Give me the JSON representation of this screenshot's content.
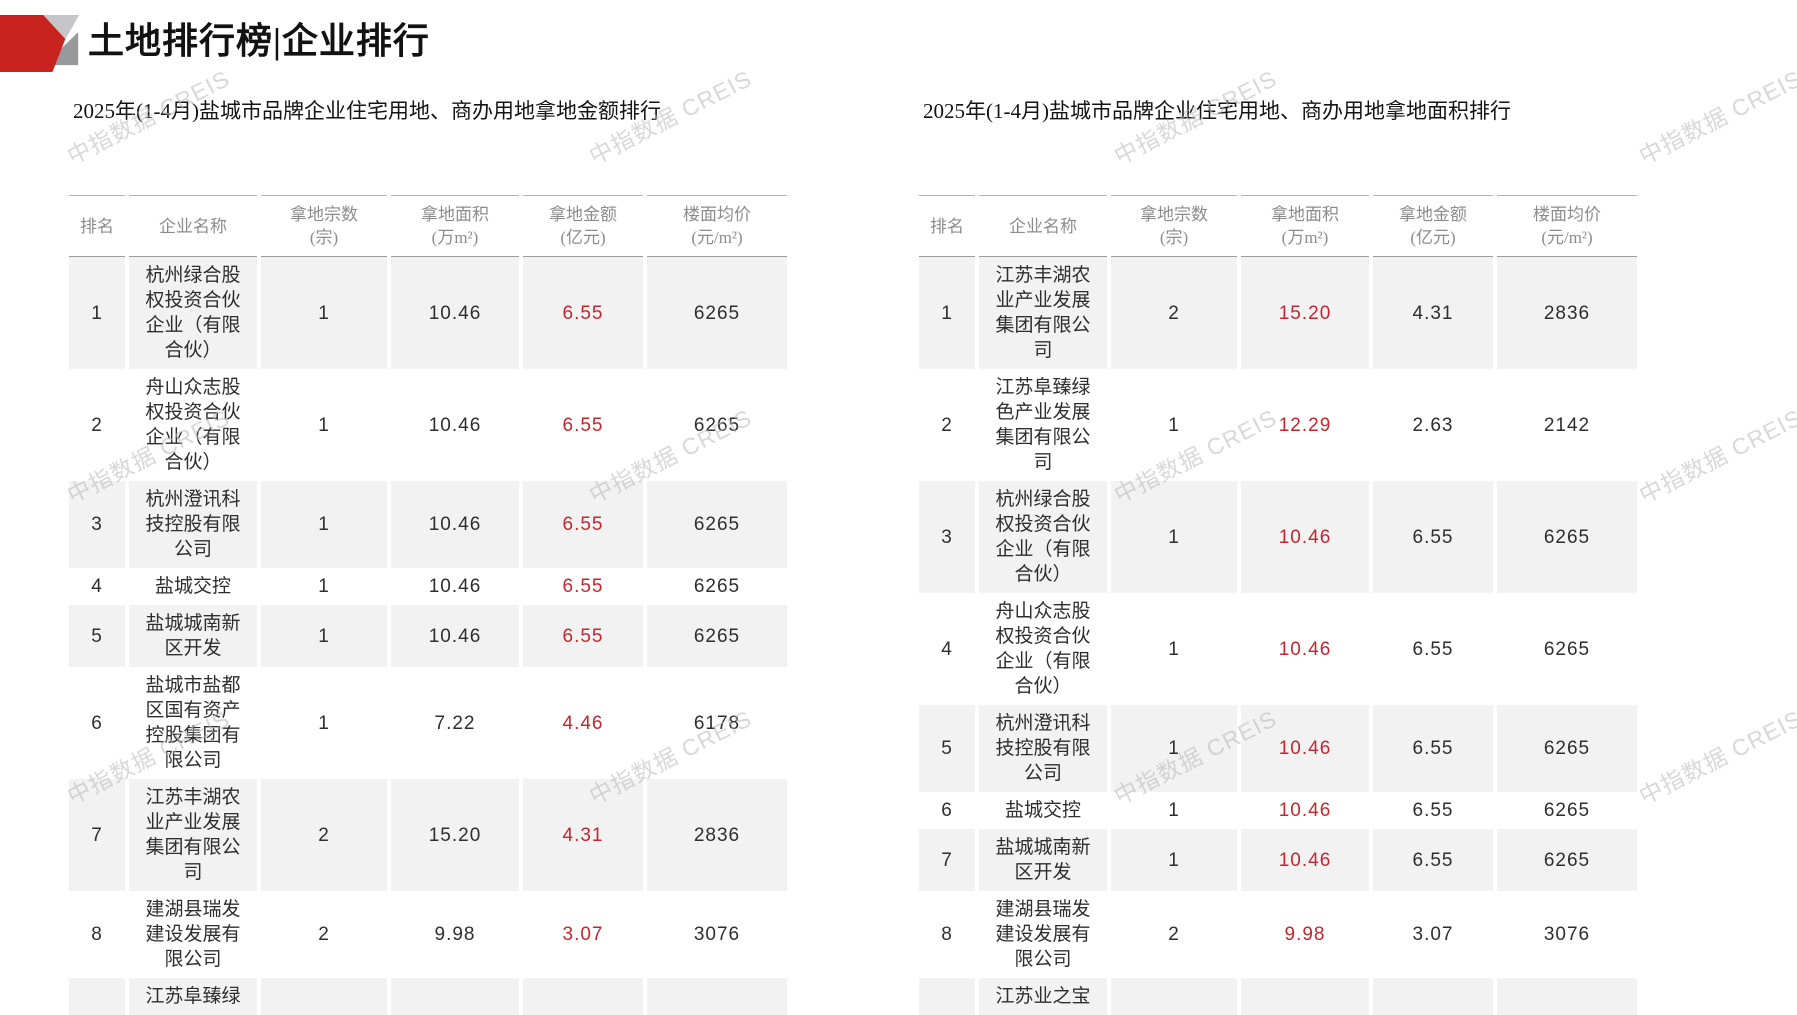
{
  "page": {
    "title": "土地排行榜|企业排行"
  },
  "watermark": {
    "text": "中指数据 CREIS",
    "color": "#b9b9b9"
  },
  "colors": {
    "highlight_red": "#c2262e",
    "logo_red": "#c8231f",
    "shaded_row": "#f2f2f3",
    "header_text": "#8c8c8c"
  },
  "tables": [
    {
      "subtitle": "2025年(1-4月)盐城市品牌企业住宅用地、商办用地拿地金额排行",
      "highlight_key": "amount",
      "columns": [
        {
          "key": "rank",
          "label": "排名"
        },
        {
          "key": "name",
          "label": "企业名称"
        },
        {
          "key": "parcels",
          "label": "拿地宗数\n(宗)"
        },
        {
          "key": "area",
          "label": "拿地面积\n(万m²)"
        },
        {
          "key": "amount",
          "label": "拿地金额\n(亿元)"
        },
        {
          "key": "price",
          "label": "楼面均价\n(元/m²)"
        }
      ],
      "rows": [
        {
          "rank": "1",
          "name": "杭州绿合股\n权投资合伙\n企业（有限\n合伙）",
          "parcels": "1",
          "area": "10.46",
          "amount": "6.55",
          "price": "6265"
        },
        {
          "rank": "2",
          "name": "舟山众志股\n权投资合伙\n企业（有限\n合伙）",
          "parcels": "1",
          "area": "10.46",
          "amount": "6.55",
          "price": "6265"
        },
        {
          "rank": "3",
          "name": "杭州澄讯科\n技控股有限\n公司",
          "parcels": "1",
          "area": "10.46",
          "amount": "6.55",
          "price": "6265"
        },
        {
          "rank": "4",
          "name": "盐城交控",
          "parcels": "1",
          "area": "10.46",
          "amount": "6.55",
          "price": "6265"
        },
        {
          "rank": "5",
          "name": "盐城城南新\n区开发",
          "parcels": "1",
          "area": "10.46",
          "amount": "6.55",
          "price": "6265"
        },
        {
          "rank": "6",
          "name": "盐城市盐都\n区国有资产\n控股集团有\n限公司",
          "parcels": "1",
          "area": "7.22",
          "amount": "4.46",
          "price": "6178"
        },
        {
          "rank": "7",
          "name": "江苏丰湖农\n业产业发展\n集团有限公\n司",
          "parcels": "2",
          "area": "15.20",
          "amount": "4.31",
          "price": "2836"
        },
        {
          "rank": "8",
          "name": "建湖县瑞发\n建设发展有\n限公司",
          "parcels": "2",
          "area": "9.98",
          "amount": "3.07",
          "price": "3076"
        },
        {
          "rank": "",
          "name": "江苏阜臻绿",
          "parcels": "",
          "area": "",
          "amount": "",
          "price": ""
        }
      ]
    },
    {
      "subtitle": "2025年(1-4月)盐城市品牌企业住宅用地、商办用地拿地面积排行",
      "highlight_key": "area",
      "columns": [
        {
          "key": "rank",
          "label": "排名"
        },
        {
          "key": "name",
          "label": "企业名称"
        },
        {
          "key": "parcels",
          "label": "拿地宗数\n(宗)"
        },
        {
          "key": "area",
          "label": "拿地面积\n(万m²)"
        },
        {
          "key": "amount",
          "label": "拿地金额\n(亿元)"
        },
        {
          "key": "price",
          "label": "楼面均价\n(元/m²)"
        }
      ],
      "rows": [
        {
          "rank": "1",
          "name": "江苏丰湖农\n业产业发展\n集团有限公\n司",
          "parcels": "2",
          "area": "15.20",
          "amount": "4.31",
          "price": "2836"
        },
        {
          "rank": "2",
          "name": "江苏阜臻绿\n色产业发展\n集团有限公\n司",
          "parcels": "1",
          "area": "12.29",
          "amount": "2.63",
          "price": "2142"
        },
        {
          "rank": "3",
          "name": "杭州绿合股\n权投资合伙\n企业（有限\n合伙）",
          "parcels": "1",
          "area": "10.46",
          "amount": "6.55",
          "price": "6265"
        },
        {
          "rank": "4",
          "name": "舟山众志股\n权投资合伙\n企业（有限\n合伙）",
          "parcels": "1",
          "area": "10.46",
          "amount": "6.55",
          "price": "6265"
        },
        {
          "rank": "5",
          "name": "杭州澄讯科\n技控股有限\n公司",
          "parcels": "1",
          "area": "10.46",
          "amount": "6.55",
          "price": "6265"
        },
        {
          "rank": "6",
          "name": "盐城交控",
          "parcels": "1",
          "area": "10.46",
          "amount": "6.55",
          "price": "6265"
        },
        {
          "rank": "7",
          "name": "盐城城南新\n区开发",
          "parcels": "1",
          "area": "10.46",
          "amount": "6.55",
          "price": "6265"
        },
        {
          "rank": "8",
          "name": "建湖县瑞发\n建设发展有\n限公司",
          "parcels": "2",
          "area": "9.98",
          "amount": "3.07",
          "price": "3076"
        },
        {
          "rank": "",
          "name": "江苏业之宝",
          "parcels": "",
          "area": "",
          "amount": "",
          "price": ""
        }
      ]
    }
  ]
}
